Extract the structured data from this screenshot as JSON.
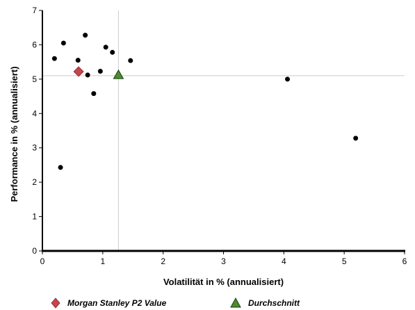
{
  "chart_data": {
    "type": "scatter",
    "title": "",
    "xlabel": "Volatilität in % (annualisiert)",
    "ylabel": "Performance in % (annualisiert)",
    "xlim": [
      0,
      6
    ],
    "ylim": [
      0,
      7
    ],
    "xticks": [
      "0",
      "1",
      "2",
      "3",
      "4",
      "5",
      "6"
    ],
    "yticks": [
      "0",
      "1",
      "2",
      "3",
      "4",
      "5",
      "6",
      "7"
    ],
    "grid": false,
    "reference_lines": {
      "x": 1.26,
      "y": 5.1
    },
    "colors": {
      "points": "#000000",
      "highlight": "#c8444b",
      "average": "#4a8c2f",
      "reference": "#cccccc"
    },
    "points": [
      {
        "x": 0.2,
        "y": 5.6
      },
      {
        "x": 0.35,
        "y": 6.05
      },
      {
        "x": 0.3,
        "y": 2.43
      },
      {
        "x": 0.59,
        "y": 5.55
      },
      {
        "x": 0.71,
        "y": 6.28
      },
      {
        "x": 0.75,
        "y": 5.12
      },
      {
        "x": 0.85,
        "y": 4.58
      },
      {
        "x": 0.96,
        "y": 5.23
      },
      {
        "x": 1.05,
        "y": 5.93
      },
      {
        "x": 1.16,
        "y": 5.78
      },
      {
        "x": 1.46,
        "y": 5.54
      },
      {
        "x": 4.06,
        "y": 5.0
      },
      {
        "x": 5.19,
        "y": 3.28
      }
    ],
    "highlight": {
      "name": "Morgan Stanley P2 Value",
      "x": 0.6,
      "y": 5.22
    },
    "average": {
      "name": "Durchschnitt",
      "x": 1.26,
      "y": 5.12
    },
    "legend": {
      "placement": "bottom",
      "entries": [
        "Morgan Stanley P2 Value",
        "Durchschnitt"
      ]
    }
  }
}
